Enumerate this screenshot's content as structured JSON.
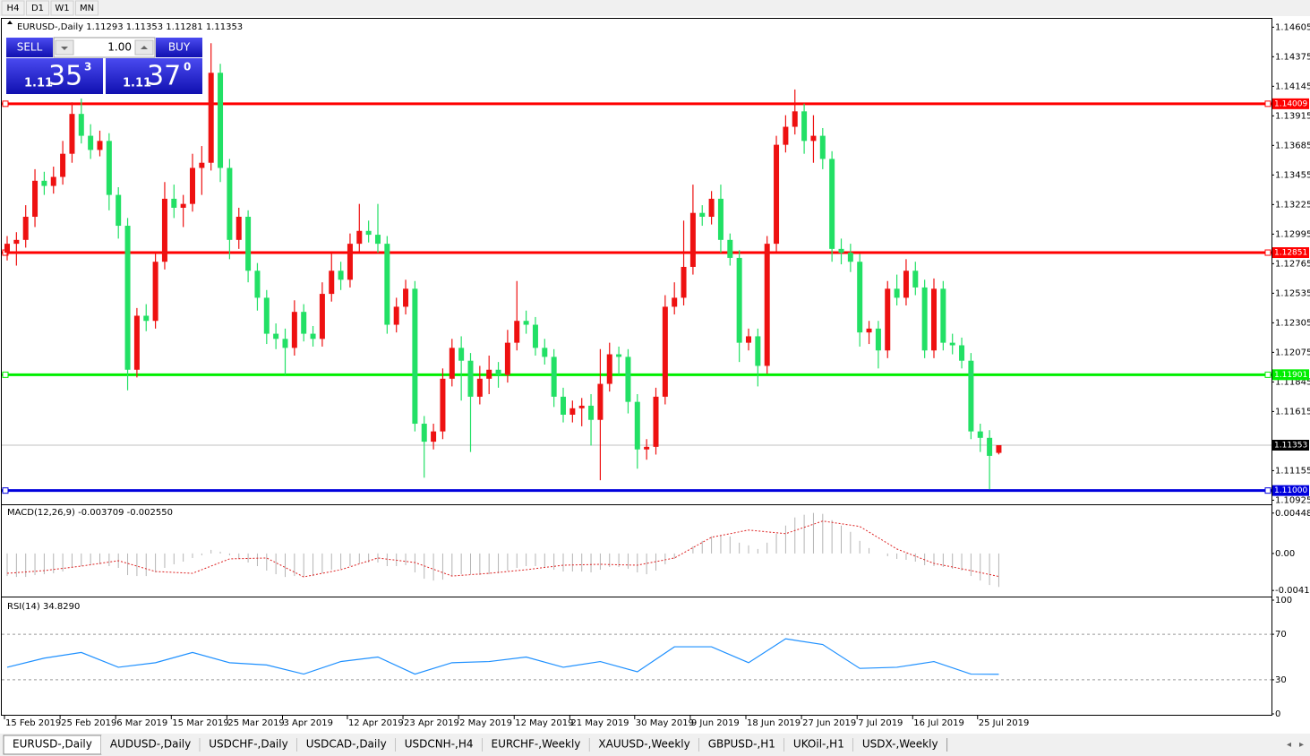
{
  "toolbar": {
    "timeframes": [
      "H4",
      "D1",
      "W1",
      "MN"
    ]
  },
  "trade_panel": {
    "sell_label": "SELL",
    "buy_label": "BUY",
    "lot": "1.00",
    "sell": {
      "big": "1.11",
      "pips": "35",
      "point": "3"
    },
    "buy": {
      "big": "1.11",
      "pips": "37",
      "point": "0"
    }
  },
  "tabs": [
    "EURUSD-,Daily",
    "AUDUSD-,Daily",
    "USDCHF-,Daily",
    "USDCAD-,Daily",
    "USDCNH-,H4",
    "EURCHF-,Weekly",
    "XAUUSD-,Weekly",
    "GBPUSD-,H1",
    "UKOil-,H1",
    "USDX-,Weekly"
  ],
  "chart_data": [
    {
      "type": "candlestick",
      "title": "EURUSD-,Daily  1.11293 1.11353 1.11281 1.11353",
      "up_color": "#ee1111",
      "down_color": "#22e065",
      "ylim": [
        1.109,
        1.1467
      ],
      "yticks": [
        1.14605,
        1.14375,
        1.14145,
        1.13915,
        1.13685,
        1.13455,
        1.13225,
        1.12995,
        1.12765,
        1.12535,
        1.12305,
        1.12075,
        1.11845,
        1.11615,
        1.11155,
        1.10925
      ],
      "hlines": [
        {
          "value": 1.14009,
          "color": "#ff0000"
        },
        {
          "value": 1.12851,
          "color": "#ff0000"
        },
        {
          "value": 1.11901,
          "color": "#00ee00"
        },
        {
          "value": 1.11,
          "label": "1.11000",
          "color": "#0000dd"
        }
      ],
      "categories": [
        "15 Feb 2019",
        null,
        null,
        null,
        null,
        null,
        "25 Feb 2019",
        null,
        null,
        null,
        null,
        null,
        "6 Mar 2019",
        null,
        null,
        null,
        null,
        null,
        "15 Mar 2019",
        null,
        null,
        null,
        null,
        null,
        "25 Mar 2019",
        null,
        null,
        null,
        null,
        null,
        "3 Apr 2019",
        null,
        null,
        null,
        null,
        null,
        null,
        "12 Apr 2019",
        null,
        null,
        null,
        null,
        null,
        "23 Apr 2019",
        null,
        null,
        null,
        null,
        null,
        "2 May 2019",
        null,
        null,
        null,
        null,
        null,
        "12 May 2019",
        null,
        null,
        null,
        null,
        null,
        "21 May 2019",
        null,
        null,
        null,
        null,
        null,
        null,
        "30 May 2019",
        null,
        null,
        null,
        null,
        null,
        "9 Jun 2019",
        null,
        null,
        null,
        null,
        null,
        "18 Jun 2019",
        null,
        null,
        null,
        null,
        null,
        "27 Jun 2019",
        null,
        null,
        null,
        null,
        null,
        "7 Jul 2019",
        null,
        null,
        null,
        null,
        null,
        "16 Jul 2019",
        null,
        null,
        null,
        null,
        null,
        null,
        "25 Jul 2019",
        null,
        null
      ],
      "candles": [
        [
          1.1285,
          1.1298,
          1.1279,
          1.1292
        ],
        [
          1.1292,
          1.1301,
          1.1275,
          1.1295
        ],
        [
          1.1295,
          1.1322,
          1.1289,
          1.1313
        ],
        [
          1.1313,
          1.135,
          1.1305,
          1.1341
        ],
        [
          1.1341,
          1.1348,
          1.133,
          1.1337
        ],
        [
          1.1337,
          1.1352,
          1.1331,
          1.1344
        ],
        [
          1.1344,
          1.1372,
          1.1338,
          1.1362
        ],
        [
          1.1362,
          1.1402,
          1.1355,
          1.1393
        ],
        [
          1.1393,
          1.1405,
          1.137,
          1.1376
        ],
        [
          1.1376,
          1.1385,
          1.1358,
          1.1365
        ],
        [
          1.1365,
          1.138,
          1.136,
          1.1372
        ],
        [
          1.1372,
          1.1378,
          1.1318,
          1.133
        ],
        [
          1.133,
          1.1336,
          1.1296,
          1.1306
        ],
        [
          1.1306,
          1.1312,
          1.1178,
          1.1194
        ],
        [
          1.1194,
          1.1242,
          1.1188,
          1.1236
        ],
        [
          1.1236,
          1.1245,
          1.1224,
          1.1232
        ],
        [
          1.1232,
          1.1285,
          1.1226,
          1.1278
        ],
        [
          1.1278,
          1.134,
          1.1272,
          1.1327
        ],
        [
          1.1327,
          1.1338,
          1.1312,
          1.132
        ],
        [
          1.132,
          1.133,
          1.1305,
          1.1323
        ],
        [
          1.1323,
          1.1362,
          1.1317,
          1.1351
        ],
        [
          1.1351,
          1.1368,
          1.133,
          1.1355
        ],
        [
          1.1355,
          1.1448,
          1.1349,
          1.1425
        ],
        [
          1.1425,
          1.1432,
          1.134,
          1.1351
        ],
        [
          1.1351,
          1.1358,
          1.128,
          1.1295
        ],
        [
          1.1295,
          1.132,
          1.1288,
          1.1313
        ],
        [
          1.1313,
          1.1318,
          1.1262,
          1.1271
        ],
        [
          1.1271,
          1.1277,
          1.124,
          1.125
        ],
        [
          1.125,
          1.1256,
          1.1214,
          1.1222
        ],
        [
          1.1222,
          1.123,
          1.121,
          1.1218
        ],
        [
          1.1218,
          1.1226,
          1.119,
          1.1211
        ],
        [
          1.1211,
          1.1248,
          1.1205,
          1.1239
        ],
        [
          1.1239,
          1.1245,
          1.1216,
          1.1222
        ],
        [
          1.1222,
          1.1228,
          1.1212,
          1.1218
        ],
        [
          1.1218,
          1.1262,
          1.1212,
          1.1253
        ],
        [
          1.1253,
          1.1285,
          1.1247,
          1.1271
        ],
        [
          1.1271,
          1.1278,
          1.1256,
          1.1264
        ],
        [
          1.1264,
          1.13,
          1.1258,
          1.1292
        ],
        [
          1.1292,
          1.1323,
          1.1286,
          1.1302
        ],
        [
          1.1302,
          1.131,
          1.1293,
          1.1299
        ],
        [
          1.1299,
          1.1323,
          1.1285,
          1.1292
        ],
        [
          1.1292,
          1.1298,
          1.1222,
          1.1229
        ],
        [
          1.1229,
          1.125,
          1.1223,
          1.1243
        ],
        [
          1.1243,
          1.1264,
          1.1237,
          1.1257
        ],
        [
          1.1257,
          1.1263,
          1.1146,
          1.1152
        ],
        [
          1.1152,
          1.1158,
          1.111,
          1.1138
        ],
        [
          1.1138,
          1.1152,
          1.1132,
          1.1146
        ],
        [
          1.1146,
          1.1195,
          1.114,
          1.1187
        ],
        [
          1.1187,
          1.1218,
          1.1181,
          1.1211
        ],
        [
          1.1211,
          1.122,
          1.117,
          1.1201
        ],
        [
          1.1201,
          1.1207,
          1.113,
          1.1173
        ],
        [
          1.1173,
          1.1197,
          1.1167,
          1.1187
        ],
        [
          1.1187,
          1.1205,
          1.1175,
          1.1194
        ],
        [
          1.1194,
          1.12,
          1.118,
          1.119
        ],
        [
          1.119,
          1.1225,
          1.1184,
          1.1215
        ],
        [
          1.1215,
          1.1263,
          1.1209,
          1.1232
        ],
        [
          1.1232,
          1.124,
          1.1222,
          1.1229
        ],
        [
          1.1229,
          1.1235,
          1.1205,
          1.1211
        ],
        [
          1.1211,
          1.1218,
          1.1198,
          1.1204
        ],
        [
          1.1204,
          1.121,
          1.1165,
          1.1173
        ],
        [
          1.1173,
          1.118,
          1.1153,
          1.1159
        ],
        [
          1.1159,
          1.117,
          1.1153,
          1.1164
        ],
        [
          1.1164,
          1.1172,
          1.115,
          1.1166
        ],
        [
          1.1166,
          1.1175,
          1.1135,
          1.1155
        ],
        [
          1.1155,
          1.121,
          1.1108,
          1.1183
        ],
        [
          1.1183,
          1.1215,
          1.1177,
          1.1206
        ],
        [
          1.1206,
          1.1212,
          1.119,
          1.1204
        ],
        [
          1.1204,
          1.121,
          1.116,
          1.1169
        ],
        [
          1.1169,
          1.1175,
          1.1117,
          1.1132
        ],
        [
          1.1132,
          1.114,
          1.1124,
          1.1134
        ],
        [
          1.1134,
          1.118,
          1.1128,
          1.1173
        ],
        [
          1.1173,
          1.1252,
          1.1167,
          1.1243
        ],
        [
          1.1243,
          1.1262,
          1.1237,
          1.125
        ],
        [
          1.125,
          1.131,
          1.1244,
          1.1274
        ],
        [
          1.1274,
          1.1338,
          1.1268,
          1.1316
        ],
        [
          1.1316,
          1.1322,
          1.1306,
          1.1313
        ],
        [
          1.1313,
          1.1333,
          1.1307,
          1.1327
        ],
        [
          1.1327,
          1.1338,
          1.1285,
          1.1295
        ],
        [
          1.1295,
          1.13,
          1.1275,
          1.1281
        ],
        [
          1.1281,
          1.1287,
          1.12,
          1.1215
        ],
        [
          1.1215,
          1.1226,
          1.1209,
          1.122
        ],
        [
          1.122,
          1.1226,
          1.1181,
          1.1197
        ],
        [
          1.1197,
          1.1298,
          1.1191,
          1.1292
        ],
        [
          1.1292,
          1.1376,
          1.1286,
          1.1369
        ],
        [
          1.1369,
          1.1392,
          1.1363,
          1.1383
        ],
        [
          1.1383,
          1.1412,
          1.1377,
          1.1395
        ],
        [
          1.1395,
          1.1401,
          1.1362,
          1.1372
        ],
        [
          1.1372,
          1.1392,
          1.1355,
          1.1376
        ],
        [
          1.1376,
          1.1382,
          1.135,
          1.1358
        ],
        [
          1.1358,
          1.1364,
          1.1278,
          1.1288
        ],
        [
          1.1288,
          1.1296,
          1.1276,
          1.1285
        ],
        [
          1.1285,
          1.1292,
          1.127,
          1.1278
        ],
        [
          1.1278,
          1.1284,
          1.1212,
          1.1223
        ],
        [
          1.1223,
          1.1232,
          1.1214,
          1.1226
        ],
        [
          1.1226,
          1.1232,
          1.1195,
          1.1209
        ],
        [
          1.1209,
          1.1263,
          1.1203,
          1.1257
        ],
        [
          1.1257,
          1.1268,
          1.1244,
          1.125
        ],
        [
          1.125,
          1.128,
          1.1244,
          1.1271
        ],
        [
          1.1271,
          1.1278,
          1.1252,
          1.1258
        ],
        [
          1.1258,
          1.1264,
          1.1203,
          1.1209
        ],
        [
          1.1209,
          1.1265,
          1.1203,
          1.1257
        ],
        [
          1.1257,
          1.1263,
          1.1209,
          1.1215
        ],
        [
          1.1215,
          1.1222,
          1.1206,
          1.1213
        ],
        [
          1.1213,
          1.1219,
          1.1195,
          1.1201
        ],
        [
          1.1201,
          1.1207,
          1.114,
          1.1146
        ],
        [
          1.1146,
          1.1152,
          1.113,
          1.1141
        ],
        [
          1.1141,
          1.1147,
          1.1101,
          1.1127
        ],
        [
          1.11293,
          1.11353,
          1.11281,
          1.11353
        ]
      ]
    },
    {
      "type": "macd",
      "title": "MACD(12,26,9) -0.003709 -0.002550",
      "ylim": [
        -0.00468,
        0.00526
      ],
      "yticks": [
        0.004484,
        {
          "value": 0,
          "label": "0.00"
        },
        -0.0041
      ],
      "series": [
        {
          "name": "MACD",
          "color": "#b4b4b4",
          "values": [
            -0.0025,
            -0.0026,
            -0.0026,
            -0.0024,
            -0.0023,
            -0.0022,
            -0.002,
            -0.0016,
            -0.0014,
            -0.0013,
            -0.0012,
            -0.0014,
            -0.0016,
            -0.0024,
            -0.0025,
            -0.0025,
            -0.0021,
            -0.0016,
            -0.0012,
            -0.0009,
            -0.0005,
            -0.0002,
            0.0004,
            0.0002,
            -0.0002,
            -0.0006,
            -0.001,
            -0.0014,
            -0.0019,
            -0.0023,
            -0.0026,
            -0.0025,
            -0.0026,
            -0.0025,
            -0.0022,
            -0.0018,
            -0.0017,
            -0.0014,
            -0.0011,
            -0.001,
            -0.001,
            -0.0014,
            -0.0014,
            -0.0013,
            -0.0021,
            -0.0028,
            -0.003,
            -0.0029,
            -0.0025,
            -0.0023,
            -0.0023,
            -0.0024,
            -0.0023,
            -0.0022,
            -0.0019,
            -0.0016,
            -0.0014,
            -0.0014,
            -0.0015,
            -0.0018,
            -0.002,
            -0.002,
            -0.002,
            -0.0021,
            -0.0018,
            -0.0015,
            -0.0015,
            -0.0017,
            -0.0021,
            -0.0023,
            -0.0019,
            -0.0012,
            -0.0006,
            0,
            0.0008,
            0.0014,
            0.0019,
            0.002,
            0.0019,
            0.0012,
            0.0009,
            0.0005,
            0.0012,
            0.0022,
            0.0031,
            0.004,
            0.0043,
            0.0045,
            0.0044,
            0.0037,
            0.0031,
            0.0024,
            0.0014,
            0.0006,
            0,
            -0.0003,
            -0.0006,
            -0.0007,
            -0.0009,
            -0.0013,
            -0.0014,
            -0.0015,
            -0.0017,
            -0.0019,
            -0.0025,
            -0.003,
            -0.0035,
            -0.003709
          ]
        },
        {
          "name": "Signal",
          "color": "#dd2222",
          "x": [
            0,
            4,
            8,
            12,
            16,
            20,
            24,
            28,
            32,
            36,
            40,
            44,
            48,
            52,
            56,
            60,
            64,
            68,
            72,
            76,
            80,
            84,
            88,
            92,
            96,
            100,
            104,
            107
          ],
          "values": [
            -0.0022,
            -0.0019,
            -0.0014,
            -0.0008,
            -0.002,
            -0.0022,
            -0.0006,
            -0.0005,
            -0.0026,
            -0.0018,
            -0.0005,
            -0.001,
            -0.0025,
            -0.0022,
            -0.0018,
            -0.0013,
            -0.0012,
            -0.0013,
            -0.0005,
            0.0018,
            0.0026,
            0.0022,
            0.0036,
            0.003,
            0.0005,
            -0.0011,
            -0.0019,
            -0.00255
          ]
        }
      ]
    },
    {
      "type": "line",
      "title": "RSI(14) 34.8290",
      "ylim": [
        0,
        100
      ],
      "yticks": [
        100,
        70,
        30,
        0
      ],
      "levels": [
        70,
        30
      ],
      "series": [
        {
          "name": "RSI",
          "color": "#1e90ff",
          "x": [
            0,
            4,
            8,
            12,
            16,
            20,
            24,
            28,
            32,
            36,
            40,
            44,
            48,
            52,
            56,
            60,
            64,
            68,
            72,
            76,
            80,
            84,
            88,
            92,
            96,
            100,
            104,
            107
          ],
          "values": [
            41,
            49,
            54,
            41,
            45,
            54,
            45,
            43,
            35,
            46,
            50,
            35,
            45,
            46,
            50,
            41,
            46,
            37,
            59,
            59,
            45,
            66,
            61,
            40,
            41,
            46,
            35,
            34.829
          ]
        }
      ]
    }
  ]
}
